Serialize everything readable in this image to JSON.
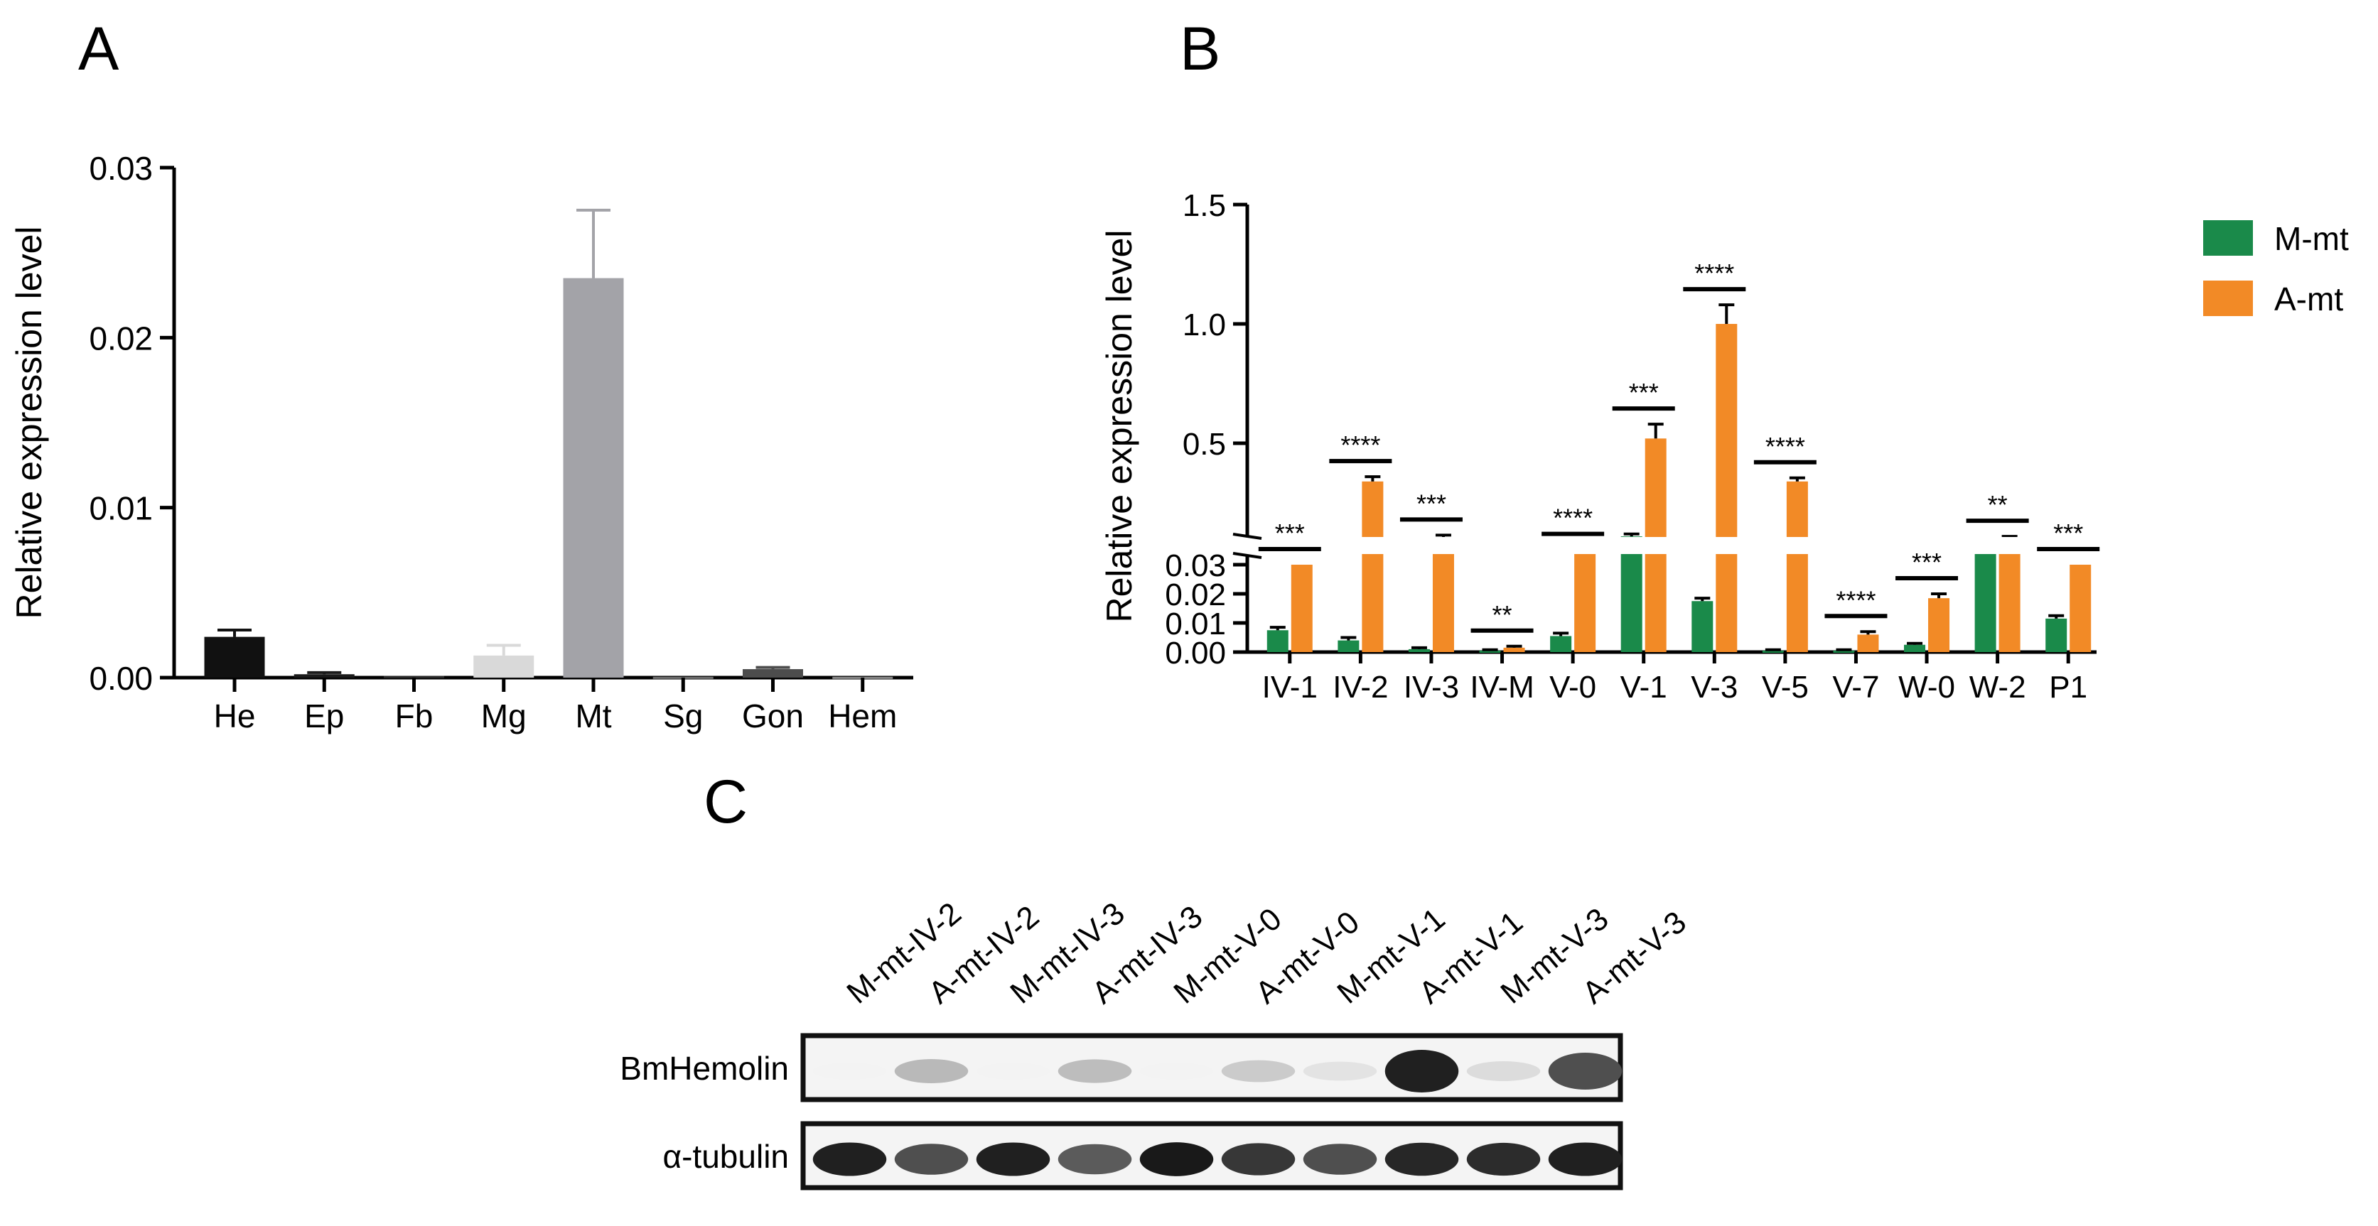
{
  "panels": {
    "a": {
      "letter": "A"
    },
    "b": {
      "letter": "B"
    },
    "c": {
      "letter": "C"
    }
  },
  "chart_data": [
    {
      "panel": "A",
      "type": "bar",
      "ylabel": "Relative expression level",
      "xlabel": "",
      "ylim": [
        0,
        0.03
      ],
      "yticks": [
        "0.00",
        "0.01",
        "0.02",
        "0.03"
      ],
      "categories": [
        "He",
        "Ep",
        "Fb",
        "Mg",
        "Mt",
        "Sg",
        "Gon",
        "Hem"
      ],
      "values": [
        0.0024,
        0.0002,
        0.0001,
        0.0013,
        0.0235,
        5e-05,
        0.0005,
        5e-05
      ],
      "errors": [
        0.0004,
        0.0001,
        0.0001,
        0.0006,
        0.004,
        2e-05,
        0.0001,
        2e-05
      ],
      "colors": [
        "#111111",
        "#1a1a1a",
        "#2a2a2a",
        "#d9d9d9",
        "#a3a3a8",
        "#6e6e6e",
        "#4d4d4d",
        "#888888"
      ]
    },
    {
      "panel": "B",
      "type": "bar",
      "ylabel": "Relative expression level",
      "xlabel": "",
      "broken_axis": true,
      "lower_ylim": [
        0,
        0.03
      ],
      "upper_ylim": [
        0.1,
        1.5
      ],
      "lower_yticks": [
        "0.00",
        "0.01",
        "0.02",
        "0.03"
      ],
      "upper_yticks": [
        "0.5",
        "1.0",
        "1.5"
      ],
      "categories": [
        "IV-1",
        "IV-2",
        "IV-3",
        "IV-M",
        "V-0",
        "V-1",
        "V-3",
        "V-5",
        "V-7",
        "W-0",
        "W-2",
        "P1"
      ],
      "series": [
        {
          "name": "M-mt",
          "color": "#1a8a4a",
          "values": [
            0.0075,
            0.004,
            0.001,
            0.0005,
            0.0055,
            0.11,
            0.0175,
            0.0005,
            0.0005,
            0.0025,
            0.05,
            0.0115
          ],
          "errors": [
            0.001,
            0.001,
            0.0005,
            0.0003,
            0.001,
            0.01,
            0.001,
            0.0003,
            0.0003,
            0.0005,
            0.005,
            0.001
          ]
        },
        {
          "name": "A-mt",
          "color": "#f28a26",
          "values": [
            0.03,
            0.34,
            0.1,
            0.0015,
            0.05,
            0.52,
            1.0,
            0.34,
            0.006,
            0.0185,
            0.1,
            0.03
          ],
          "errors": [
            0.0,
            0.02,
            0.015,
            0.0005,
            0.005,
            0.06,
            0.08,
            0.015,
            0.001,
            0.0015,
            0.01,
            0.0
          ]
        }
      ],
      "significance": [
        "***",
        "****",
        "***",
        "**",
        "****",
        "***",
        "****",
        "****",
        "****",
        "***",
        "**",
        "***"
      ],
      "legend_position": "top-right"
    }
  ],
  "blot": {
    "lanes": [
      "M-mt-IV-2",
      "A-mt-IV-2",
      "M-mt-IV-3",
      "A-mt-IV-3",
      "M-mt-V-0",
      "A-mt-V-0",
      "M-mt-V-1",
      "A-mt-V-1",
      "M-mt-V-3",
      "A-mt-V-3"
    ],
    "rows": [
      {
        "label": "BmHemolin",
        "intensity": [
          0.05,
          0.3,
          0.05,
          0.28,
          0.05,
          0.22,
          0.12,
          0.95,
          0.15,
          0.75
        ]
      },
      {
        "label": "α-tubulin",
        "intensity": [
          0.95,
          0.75,
          0.95,
          0.7,
          0.98,
          0.85,
          0.75,
          0.92,
          0.9,
          0.95
        ]
      }
    ]
  }
}
